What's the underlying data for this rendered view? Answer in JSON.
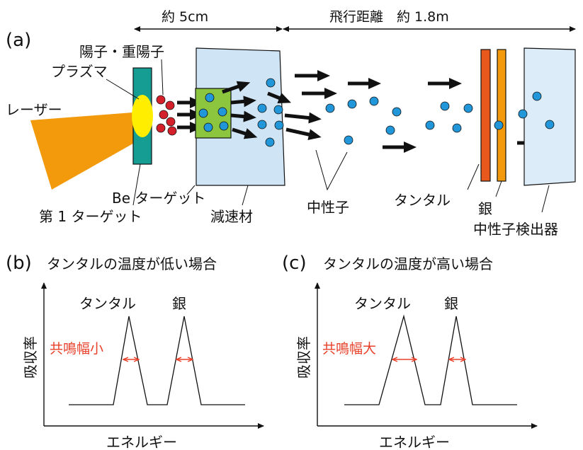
{
  "labels": {
    "panel_a": "(a)",
    "panel_b": "(b)",
    "panel_c": "(c)",
    "dist_short": "約 5cm",
    "dist_long": "飛行距離　約 1.8m",
    "laser": "レーザー",
    "plasma": "プラズマ",
    "protons": "陽子・重陽子",
    "be_target": "Be ターゲット",
    "first_target": "第 1 ターゲット",
    "moderator": "減速材",
    "neutron": "中性子",
    "tantalum": "タンタル",
    "silver": "銀",
    "detector": "中性子検出器"
  },
  "plot_b": {
    "title": "タンタルの温度が低い場合",
    "ylabel": "吸収率",
    "xlabel": "エネルギー",
    "peak1": "タンタル",
    "peak2": "銀",
    "annotation": "共鳴幅小"
  },
  "plot_c": {
    "title": "タンタルの温度が高い場合",
    "ylabel": "吸収率",
    "xlabel": "エネルギー",
    "peak1": "タンタル",
    "peak2": "銀",
    "annotation": "共鳴幅大"
  },
  "colors": {
    "laser": "#f29a0c",
    "plasma": "#ffee00",
    "first_target": "#159c93",
    "be_target": "#8cc63f",
    "moderator": "#cfe4f5",
    "neutron": "#2196d8",
    "proton": "#d4202a",
    "tantalum_plate": "#e8581c",
    "silver_plate": "#f29a0c",
    "detector": "#dcedf9",
    "annotation": "#e8402a"
  }
}
